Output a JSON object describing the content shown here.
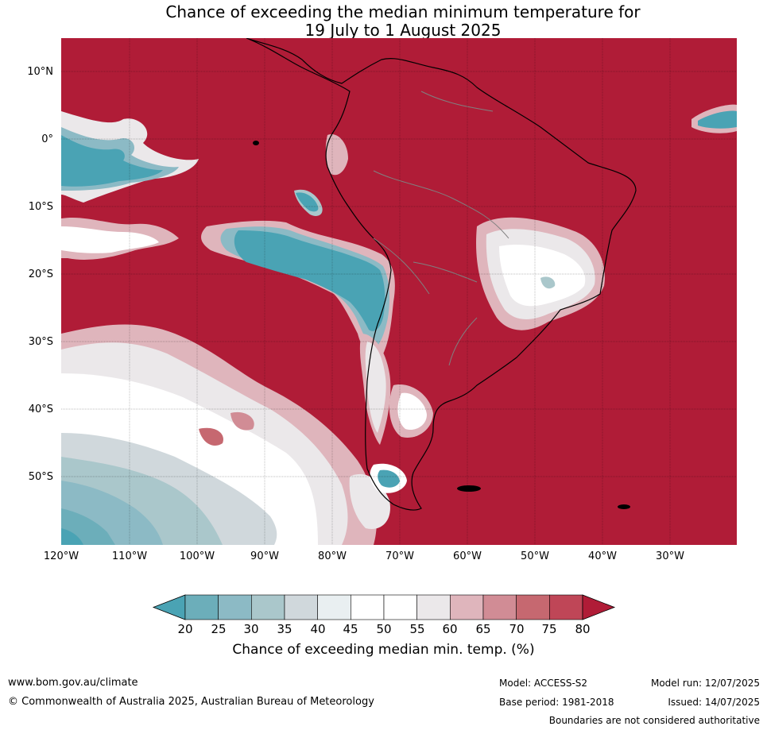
{
  "header": {
    "title_line1": "Chance of exceeding the median minimum temperature for",
    "title_line2": "19 July to 1 August 2025"
  },
  "map": {
    "lon_range": [
      -120,
      -20
    ],
    "lat_range": [
      -60,
      15
    ],
    "latitude_ticks": [
      "10°N",
      "0°",
      "10°S",
      "20°S",
      "30°S",
      "40°S",
      "50°S"
    ],
    "longitude_ticks": [
      "120°W",
      "110°W",
      "100°W",
      "90°W",
      "80°W",
      "70°W",
      "60°W",
      "50°W",
      "40°W",
      "30°W"
    ],
    "background_color": "#b01c37",
    "land_border_color": "#000000",
    "admin_border_color": "#808080"
  },
  "colorbar": {
    "title": "Chance of exceeding median min. temp. (%)",
    "ticks": [
      "20",
      "25",
      "30",
      "35",
      "40",
      "45",
      "50",
      "55",
      "60",
      "65",
      "70",
      "75",
      "80"
    ],
    "colors": [
      "#4aa3b4",
      "#6caeba",
      "#8cbac5",
      "#aac7cb",
      "#d0d8dc",
      "#e9eff1",
      "#ffffff",
      "#ffffff",
      "#ebe8ea",
      "#dfb5bc",
      "#d18c95",
      "#c66870",
      "#bf4657",
      "#b01c37"
    ]
  },
  "footer": {
    "website": "www.bom.gov.au/climate",
    "copyright": "© Commonwealth of Australia 2025, Australian Bureau of Meteorology",
    "model": "Model: ACCESS-S2",
    "base_period": "Base period: 1981-2018",
    "model_run": "Model run: 12/07/2025",
    "issued": "Issued: 14/07/2025",
    "disclaimer": "Boundaries are not considered authoritative"
  }
}
